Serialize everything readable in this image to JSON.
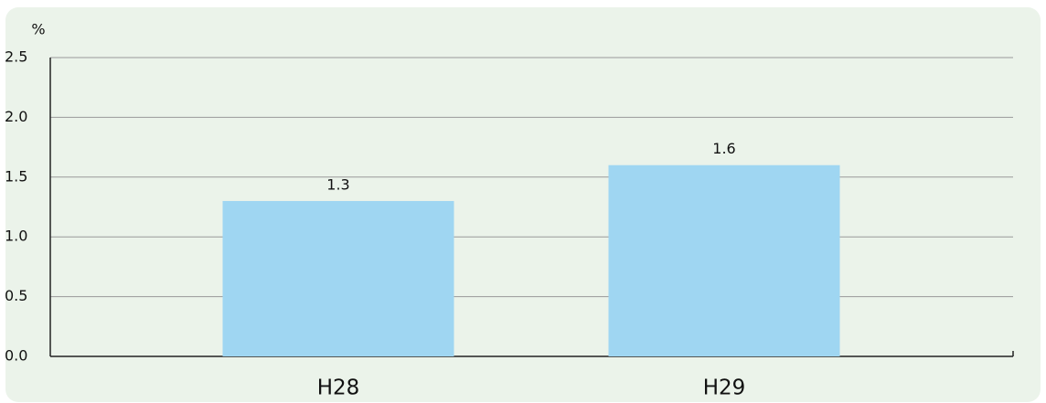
{
  "chart_data": {
    "type": "bar",
    "y_axis_label": "%",
    "categories": [
      "H28",
      "H29"
    ],
    "values": [
      1.3,
      1.6
    ],
    "color": "#9fd6f2",
    "ylim": [
      0,
      2.5
    ],
    "yticks": [
      {
        "value": 0,
        "label": "0.0"
      },
      0.5,
      {
        "value": 1,
        "label": "1.0"
      },
      1.5,
      {
        "value": 2,
        "label": "2.0"
      },
      2.5
    ],
    "grid": true
  }
}
